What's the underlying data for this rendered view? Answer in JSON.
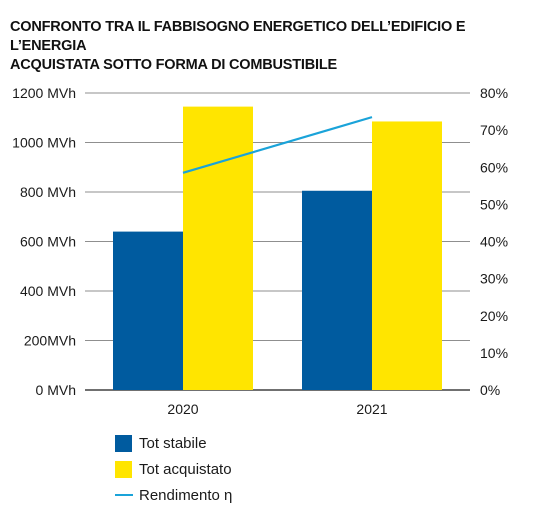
{
  "title_lines": [
    "CONFRONTO TRA IL FABBISOGNO ENERGETICO DELL’EDIFICIO E L’ENERGIA",
    "ACQUISTATA SOTTO FORMA DI COMBUSTIBILE"
  ],
  "chart_data": {
    "type": "bar",
    "categories": [
      "2020",
      "2021"
    ],
    "series": [
      {
        "name": "Tot stabile",
        "kind": "bar",
        "axis": "left",
        "color": "#005b9f",
        "values": [
          640,
          805
        ]
      },
      {
        "name": "Tot acquistato",
        "kind": "bar",
        "axis": "left",
        "color": "#ffe500",
        "values": [
          1145,
          1085
        ]
      },
      {
        "name": "Rendimento η",
        "kind": "line",
        "axis": "right",
        "color": "#1aa3d9",
        "values": [
          58.5,
          73.5
        ]
      }
    ],
    "left_axis": {
      "ylim": [
        0,
        1200
      ],
      "ticks": [
        0,
        200,
        400,
        600,
        800,
        1000,
        1200
      ],
      "tick_labels": [
        "0 MVh",
        "200MVh",
        "400 MVh",
        "600 MVh",
        "800 MVh",
        "1000 MVh",
        "1200 MVh"
      ]
    },
    "right_axis": {
      "ylim": [
        0,
        80
      ],
      "ticks": [
        0,
        10,
        20,
        30,
        40,
        50,
        60,
        70,
        80
      ],
      "tick_labels": [
        "0%",
        "10%",
        "20%",
        "30%",
        "40%",
        "50%",
        "60%",
        "70%",
        "80%"
      ]
    },
    "grid": true,
    "legend_position": "bottom-left"
  },
  "legend": [
    {
      "label": "Tot stabile",
      "color": "#005b9f",
      "type": "box"
    },
    {
      "label": "Tot acquistato",
      "color": "#ffe500",
      "type": "box"
    },
    {
      "label": "Rendimento η",
      "color": "#1aa3d9",
      "type": "line"
    }
  ]
}
